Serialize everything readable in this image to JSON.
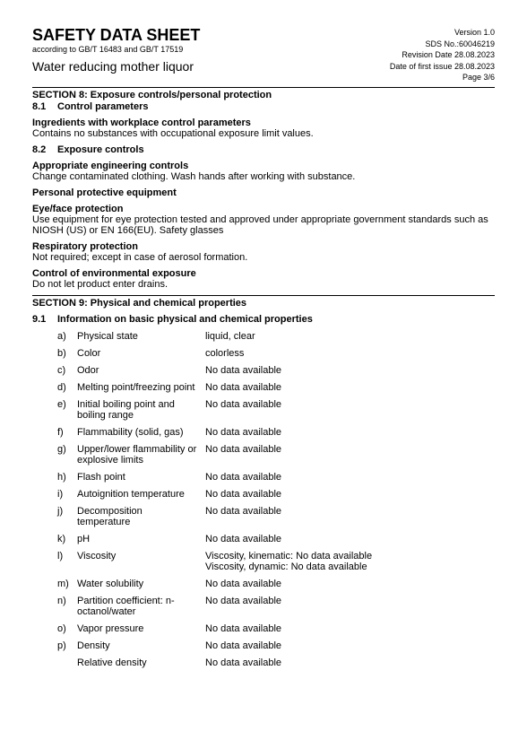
{
  "header": {
    "title": "SAFETY DATA SHEET",
    "subtitle": "according to GB/T 16483 and GB/T 17519",
    "product": "Water reducing mother liquor",
    "version": "Version 1.0",
    "sds_no": "SDS No.:60046219",
    "revision": "Revision Date 28.08.2023",
    "first_issue": "Date of first issue 28.08.2023",
    "page": "Page 3/6"
  },
  "section8": {
    "title": "SECTION 8: Exposure controls/personal protection",
    "s81_num": "8.1",
    "s81_title": "Control parameters",
    "ing_title": "Ingredients with workplace control parameters",
    "ing_text": "Contains no substances with occupational exposure limit values.",
    "s82_num": "8.2",
    "s82_title": "Exposure controls",
    "eng_title": "Appropriate engineering controls",
    "eng_text": "Change contaminated clothing. Wash hands after working with substance.",
    "ppe_title": "Personal protective equipment",
    "eye_title": "Eye/face protection",
    "eye_text": "Use equipment for eye protection tested and approved under appropriate government standards such as NIOSH (US) or EN 166(EU). Safety glasses",
    "resp_title": "Respiratory protection",
    "resp_text": "Not required; except in case of aerosol formation.",
    "env_title": "Control of environmental exposure",
    "env_text": "Do not let product enter drains."
  },
  "section9": {
    "title": "SECTION 9: Physical and chemical properties",
    "s91_num": "9.1",
    "s91_title": "Information on basic physical and chemical properties",
    "props": [
      {
        "l": "a)",
        "label": "Physical state",
        "value": "liquid, clear"
      },
      {
        "l": "b)",
        "label": "Color",
        "value": "colorless"
      },
      {
        "l": "c)",
        "label": "Odor",
        "value": "No data available"
      },
      {
        "l": "d)",
        "label": "Melting point/freezing point",
        "value": "No data available"
      },
      {
        "l": "e)",
        "label": "Initial boiling point and boiling range",
        "value": "No data available"
      },
      {
        "l": "f)",
        "label": "Flammability (solid, gas)",
        "value": "No data available"
      },
      {
        "l": "g)",
        "label": "Upper/lower flammability or explosive limits",
        "value": "No data available"
      },
      {
        "l": "h)",
        "label": "Flash point",
        "value": "No data available"
      },
      {
        "l": "i)",
        "label": "Autoignition temperature",
        "value": "No data available"
      },
      {
        "l": "j)",
        "label": "Decomposition temperature",
        "value": "No data available"
      },
      {
        "l": "k)",
        "label": "pH",
        "value": "No data available"
      },
      {
        "l": "l)",
        "label": "Viscosity",
        "value": "Viscosity, kinematic: No data available\nViscosity, dynamic: No data available"
      },
      {
        "l": "m)",
        "label": "Water solubility",
        "value": "No data available"
      },
      {
        "l": "n)",
        "label": "Partition coefficient: n-octanol/water",
        "value": "No data available"
      },
      {
        "l": "o)",
        "label": "Vapor pressure",
        "value": "No data available"
      },
      {
        "l": "p)",
        "label": "Density",
        "value": "No data available"
      },
      {
        "l": "",
        "label": "Relative density",
        "value": "No data available"
      }
    ]
  }
}
